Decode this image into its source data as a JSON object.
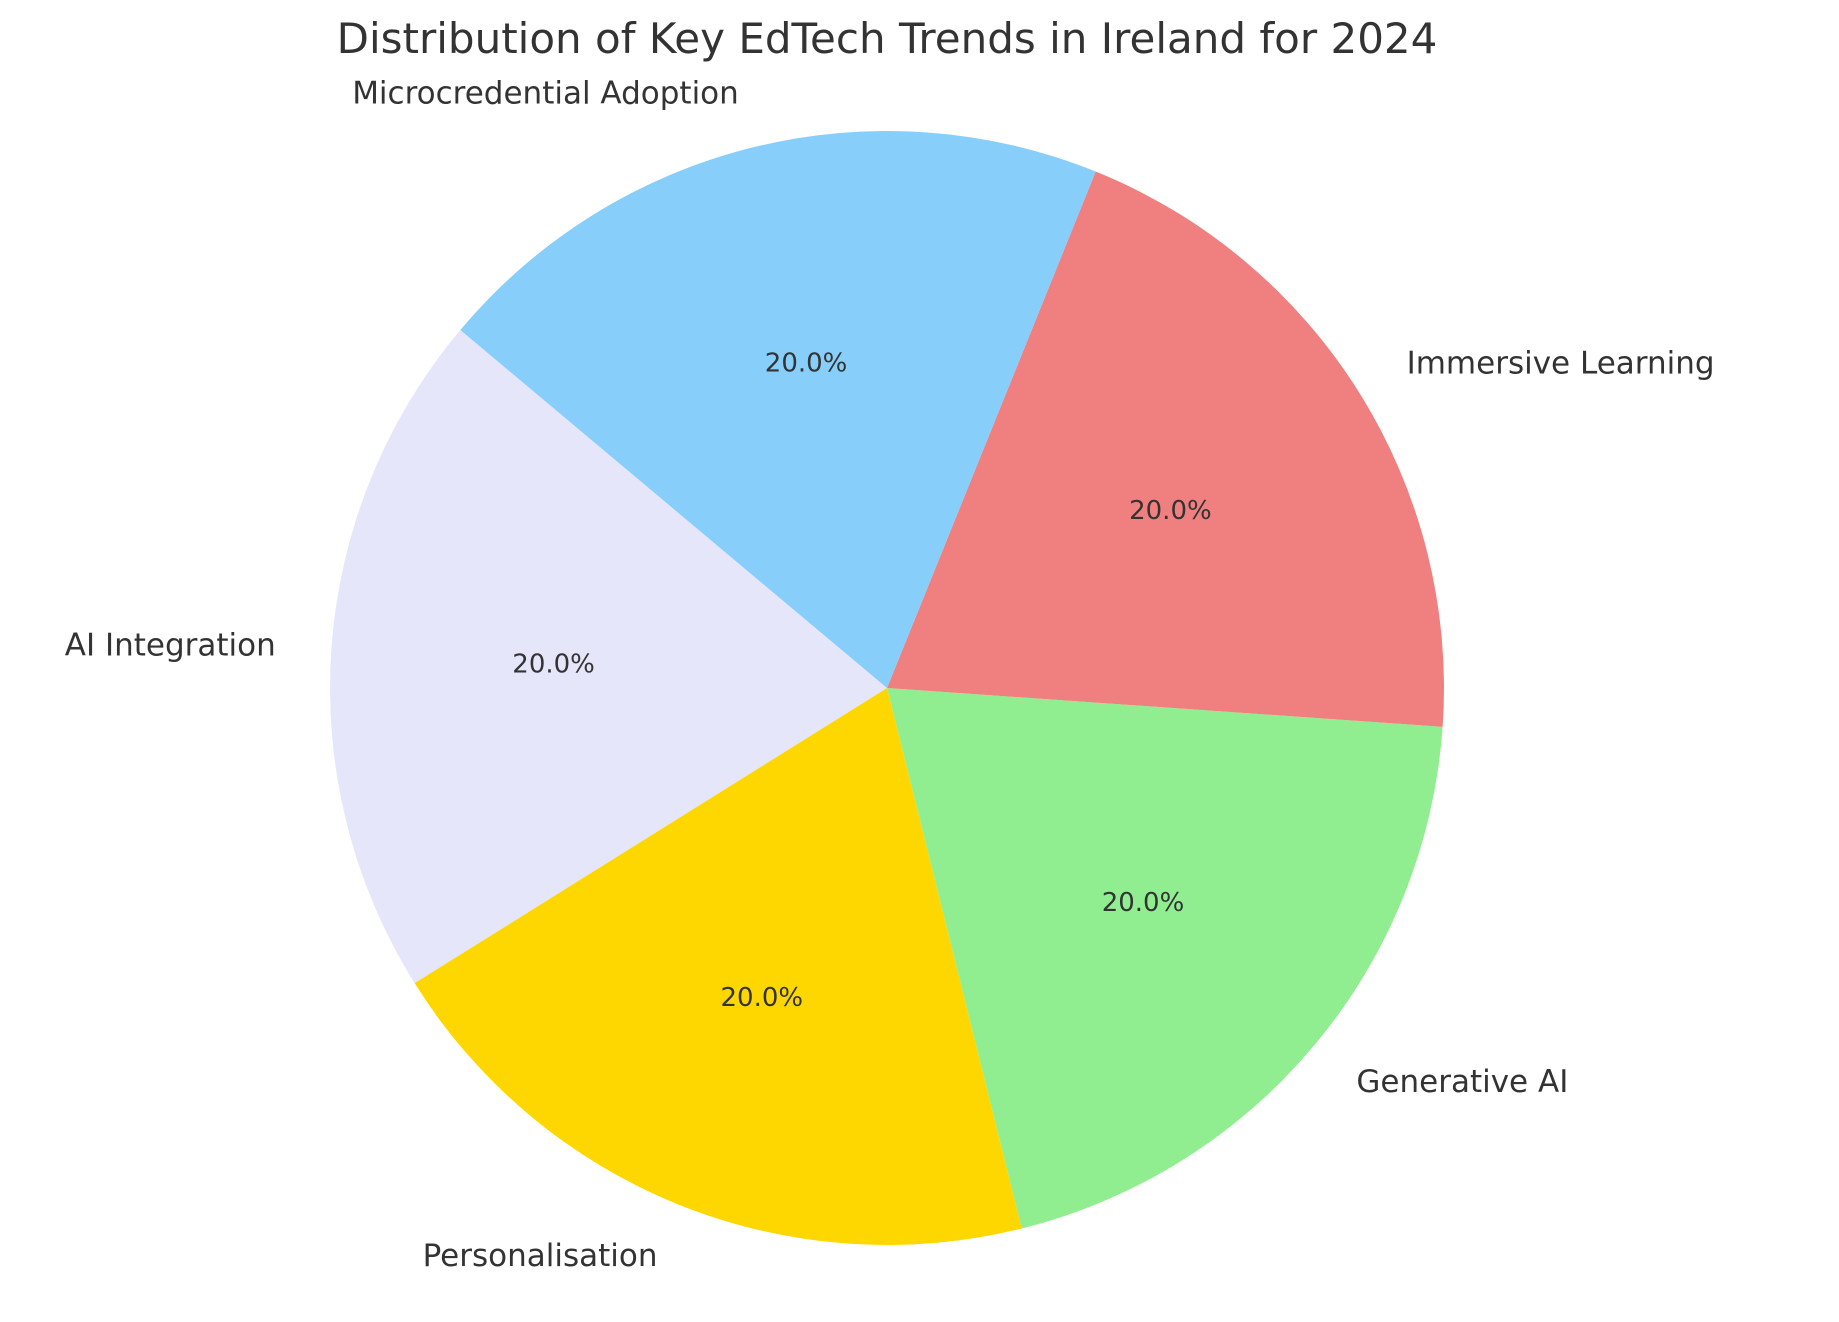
{
  "chart_data": {
    "type": "pie",
    "title": "Distribution of Key EdTech Trends in Ireland for 2024",
    "start_angle_deg": 140,
    "direction": "counterclockwise",
    "slices": [
      {
        "label": "AI Integration",
        "value": 20,
        "pct_label": "20.0%",
        "color": "#E6E6FA"
      },
      {
        "label": "Personalisation",
        "value": 20,
        "pct_label": "20.0%",
        "color": "#FFD700"
      },
      {
        "label": "Generative AI",
        "value": 20,
        "pct_label": "20.0%",
        "color": "#90EE90"
      },
      {
        "label": "Immersive Learning",
        "value": 20,
        "pct_label": "20.0%",
        "color": "#F08080"
      },
      {
        "label": "Microcredential Adoption",
        "value": 20,
        "pct_label": "20.0%",
        "color": "#87CEFA"
      }
    ]
  }
}
